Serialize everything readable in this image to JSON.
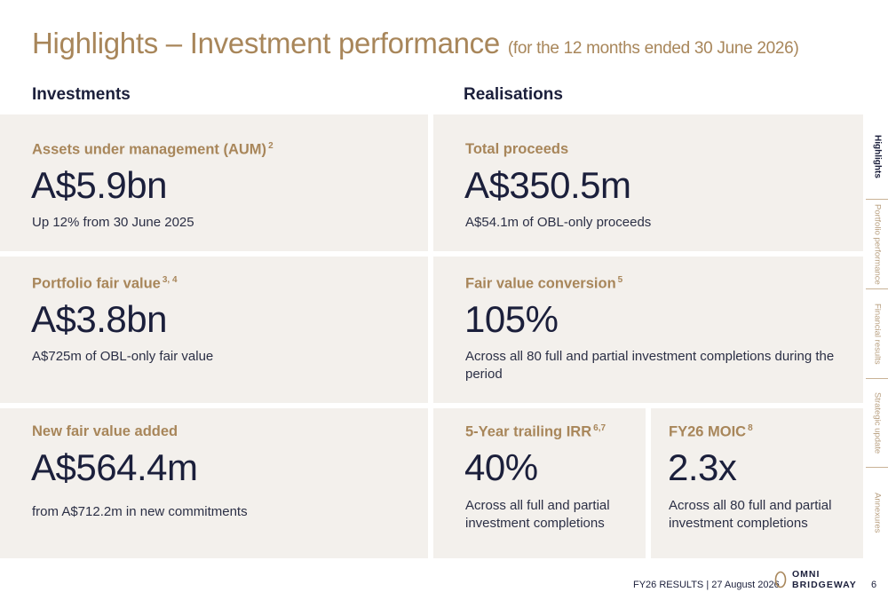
{
  "title": {
    "main": "Highlights – Investment performance",
    "sub": "(for the 12 months ended 30 June 2026)"
  },
  "columns": {
    "left": "Investments",
    "right": "Realisations"
  },
  "cards": {
    "aum": {
      "label": "Assets under management (AUM)",
      "note": "2",
      "value": "A$5.9bn",
      "desc": "Up 12% from 30 June 2025"
    },
    "fair_value": {
      "label": "Portfolio fair value",
      "note": "3, 4",
      "value": "A$3.8bn",
      "desc": "A$725m of OBL-only fair value"
    },
    "new_fv": {
      "label": "New fair value added",
      "note": "",
      "value": "A$564.4m",
      "desc": "from A$712.2m in new commitments"
    },
    "proceeds": {
      "label": "Total proceeds",
      "note": "",
      "value": "A$350.5m",
      "desc": "A$54.1m of OBL-only proceeds"
    },
    "conversion": {
      "label": "Fair value conversion",
      "note": "5",
      "value": "105%",
      "desc": "Across all 80 full and partial investment completions during the period"
    },
    "irr": {
      "label": "5-Year trailing IRR",
      "note": "6,7",
      "value": "40%",
      "desc": "Across all full and partial investment completions"
    },
    "moic": {
      "label": "FY26 MOIC",
      "note": "8",
      "value": "2.3x",
      "desc": "Across all 80 full and partial investment completions"
    }
  },
  "sidenav": [
    {
      "label": "Highlights",
      "active": true
    },
    {
      "label": "Portfolio performance",
      "active": false
    },
    {
      "label": "Financial results",
      "active": false
    },
    {
      "label": "Strategic update",
      "active": false
    },
    {
      "label": "Annexures",
      "active": false
    }
  ],
  "footer": {
    "text": "FY26 RESULTS | 27 August 2026",
    "logo_line1": "OMNI",
    "logo_line2": "BRIDGEWAY",
    "page": "6"
  },
  "colors": {
    "accent": "#a8865a",
    "navy": "#1b1f3b",
    "card_bg": "#f3f0ec"
  }
}
